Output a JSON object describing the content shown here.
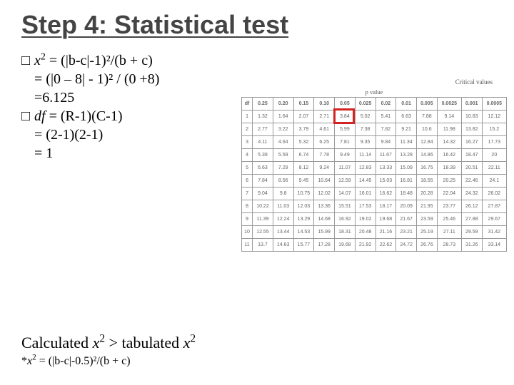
{
  "title": "Step 4: Statistical test",
  "formula": {
    "bullet": "□",
    "x_var": "x",
    "x_sup": "2",
    "x_line1": " = (|b-c|-1)²/(b + c)",
    "x_line2": "   = (|0 – 8| - 1)² / (0 +8)",
    "x_line3": "   =6.125",
    "df_var": "df",
    "df_line1": " = (R-1)(C-1)",
    "df_line2": "    = (2-1)(2-1)",
    "df_line3": "    = 1"
  },
  "table": {
    "caption": "Critical values",
    "pvalue_label": "p value",
    "headers": [
      "df",
      "0.25",
      "0.20",
      "0.15",
      "0.10",
      "0.05",
      "0.025",
      "0.02",
      "0.01",
      "0.005",
      "0.0025",
      "0.001",
      "0.0005"
    ],
    "rows": [
      [
        "1",
        "1.32",
        "1.64",
        "2.07",
        "2.71",
        "3.84",
        "5.02",
        "5.41",
        "6.63",
        "7.88",
        "9.14",
        "10.83",
        "12.12"
      ],
      [
        "2",
        "2.77",
        "3.22",
        "3.79",
        "4.61",
        "5.99",
        "7.38",
        "7.82",
        "9.21",
        "10.6",
        "11.98",
        "13.82",
        "15.2"
      ],
      [
        "3",
        "4.11",
        "4.64",
        "5.32",
        "6.25",
        "7.81",
        "9.35",
        "9.84",
        "11.34",
        "12.84",
        "14.32",
        "16.27",
        "17.73"
      ],
      [
        "4",
        "5.39",
        "5.59",
        "6.74",
        "7.78",
        "9.49",
        "11.14",
        "11.67",
        "13.28",
        "14.86",
        "16.42",
        "18.47",
        "20"
      ],
      [
        "5",
        "6.63",
        "7.29",
        "8.12",
        "9.24",
        "11.07",
        "12.83",
        "13.33",
        "15.09",
        "16.75",
        "18.39",
        "20.51",
        "22.11"
      ],
      [
        "6",
        "7.84",
        "8.56",
        "9.45",
        "10.64",
        "12.59",
        "14.45",
        "15.03",
        "16.81",
        "18.55",
        "20.25",
        "22.46",
        "24.1"
      ],
      [
        "7",
        "9.04",
        "9.8",
        "10.75",
        "12.02",
        "14.07",
        "16.01",
        "16.62",
        "18.48",
        "20.28",
        "22.04",
        "24.32",
        "26.02"
      ],
      [
        "8",
        "10.22",
        "11.03",
        "12.03",
        "13.36",
        "15.51",
        "17.53",
        "18.17",
        "20.09",
        "21.95",
        "23.77",
        "26.12",
        "27.87"
      ],
      [
        "9",
        "11.39",
        "12.24",
        "13.29",
        "14.68",
        "16.92",
        "19.02",
        "19.68",
        "21.67",
        "23.59",
        "25.46",
        "27.88",
        "29.67"
      ],
      [
        "10",
        "12.55",
        "13.44",
        "14.53",
        "15.99",
        "18.31",
        "20.48",
        "21.16",
        "23.21",
        "25.19",
        "27.11",
        "29.59",
        "31.42"
      ],
      [
        "11",
        "13.7",
        "14.63",
        "15.77",
        "17.28",
        "19.68",
        "21.92",
        "22.62",
        "24.72",
        "26.76",
        "28.73",
        "31.26",
        "33.14"
      ]
    ],
    "highlight": {
      "row_index": 0,
      "col_index": 5,
      "color": "#d22222",
      "border_width": 3
    }
  },
  "conclusion": {
    "prefix": "Calculated ",
    "var1": "x",
    "sup1": "2",
    "mid": " > tabulated ",
    "var2": "x",
    "sup2": "2"
  },
  "footnote": {
    "star": "*",
    "var": "x",
    "sup": "2",
    "tail": " = (|b-c|-0.5)²/(b + c)"
  },
  "style": {
    "title_color": "#444444",
    "title_fontsize": 36,
    "body_font": "serif",
    "highlight_border": "#d22222"
  }
}
